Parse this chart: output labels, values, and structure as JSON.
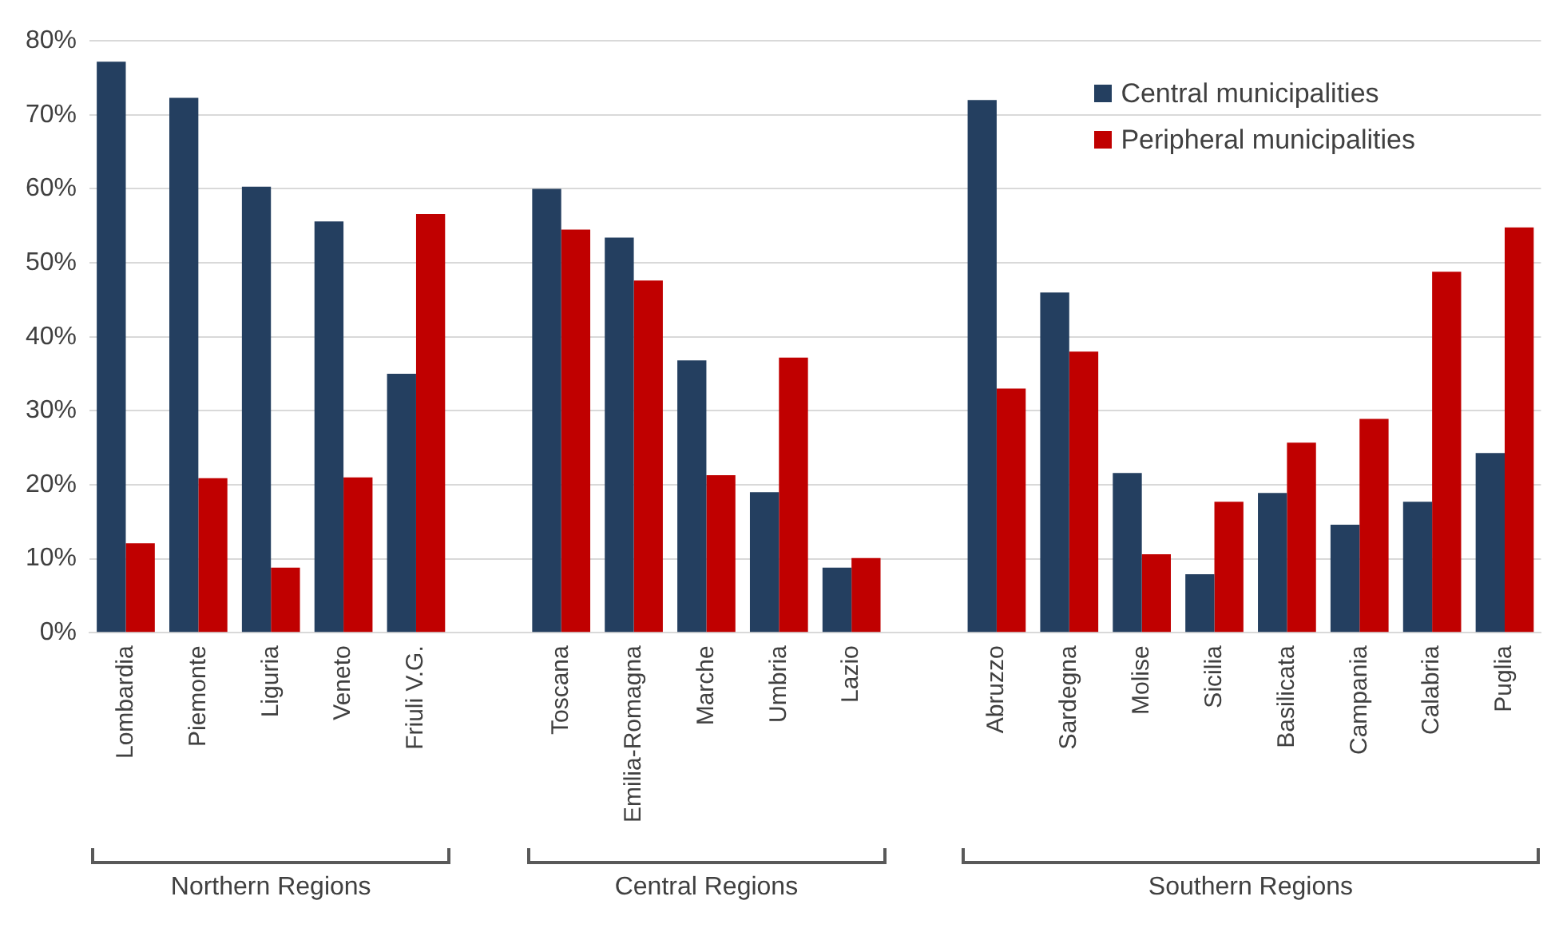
{
  "chart_data": {
    "type": "bar",
    "categories": [
      "Lombardia",
      "Piemonte",
      "Liguria",
      "Veneto",
      "Friuli V.G.",
      null,
      "Toscana",
      "Emilia-Romagna",
      "Marche",
      "Umbria",
      "Lazio",
      null,
      "Abruzzo",
      "Sardegna",
      "Molise",
      "Sicilia",
      "Basilicata",
      "Campania",
      "Calabria",
      "Puglia"
    ],
    "series": [
      {
        "name": "Central municipalities",
        "color": "#243f60",
        "values": [
          77.2,
          72.3,
          60.3,
          55.6,
          35.0,
          null,
          60.0,
          53.4,
          36.8,
          19.0,
          8.8,
          null,
          72.0,
          46.0,
          21.6,
          7.9,
          18.9,
          14.6,
          17.7,
          24.3
        ]
      },
      {
        "name": "Peripheral municipalities",
        "color": "#c00000",
        "values": [
          12.1,
          20.9,
          8.8,
          21.0,
          56.6,
          null,
          54.5,
          47.6,
          21.3,
          37.2,
          10.1,
          null,
          33.0,
          38.0,
          10.6,
          17.7,
          25.7,
          28.9,
          48.8,
          54.8
        ]
      }
    ],
    "ylim": [
      0,
      80
    ],
    "yticks": [
      {
        "value": 0,
        "label": "0%"
      },
      {
        "value": 10,
        "label": "10%"
      },
      {
        "value": 20,
        "label": "20%"
      },
      {
        "value": 30,
        "label": "30%"
      },
      {
        "value": 40,
        "label": "40%"
      },
      {
        "value": 50,
        "label": "50%"
      },
      {
        "value": 60,
        "label": "60%"
      },
      {
        "value": 70,
        "label": "70%"
      },
      {
        "value": 80,
        "label": "80%"
      }
    ],
    "grid": "y",
    "legend": "top right",
    "annotations": [
      "Northern Regions",
      "Central Regions",
      "Southern Regions"
    ]
  }
}
